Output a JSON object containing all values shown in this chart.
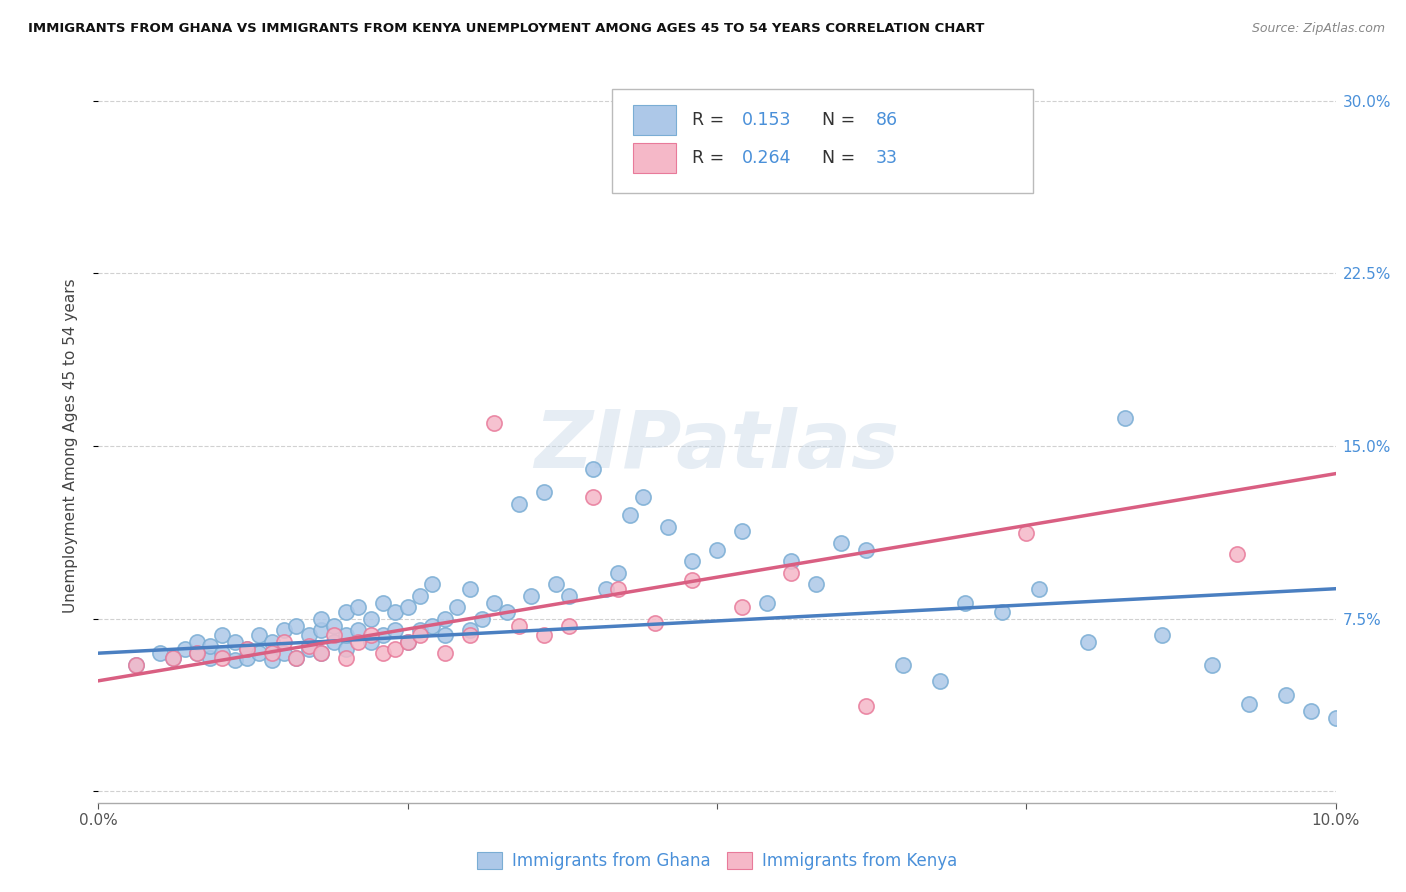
{
  "title": "IMMIGRANTS FROM GHANA VS IMMIGRANTS FROM KENYA UNEMPLOYMENT AMONG AGES 45 TO 54 YEARS CORRELATION CHART",
  "source": "Source: ZipAtlas.com",
  "ylabel": "Unemployment Among Ages 45 to 54 years",
  "yticks": [
    0.0,
    0.075,
    0.15,
    0.225,
    0.3
  ],
  "ytick_labels": [
    "",
    "7.5%",
    "15.0%",
    "22.5%",
    "30.0%"
  ],
  "xlim": [
    0.0,
    0.1
  ],
  "ylim": [
    -0.005,
    0.305
  ],
  "legend_ghana_R": "0.153",
  "legend_ghana_N": "86",
  "legend_kenya_R": "0.264",
  "legend_kenya_N": "33",
  "ghana_color": "#adc8e8",
  "ghana_edge_color": "#7aadd4",
  "kenya_color": "#f5b8c8",
  "kenya_edge_color": "#e87a9a",
  "ghana_line_color": "#4a7fc1",
  "kenya_line_color": "#d95f82",
  "watermark": "ZIPatlas",
  "ghana_scatter_x": [
    0.003,
    0.005,
    0.006,
    0.007,
    0.008,
    0.008,
    0.009,
    0.009,
    0.01,
    0.01,
    0.011,
    0.011,
    0.012,
    0.012,
    0.013,
    0.013,
    0.014,
    0.014,
    0.015,
    0.015,
    0.016,
    0.016,
    0.017,
    0.017,
    0.018,
    0.018,
    0.018,
    0.019,
    0.019,
    0.02,
    0.02,
    0.02,
    0.021,
    0.021,
    0.022,
    0.022,
    0.023,
    0.023,
    0.024,
    0.024,
    0.025,
    0.025,
    0.026,
    0.026,
    0.027,
    0.027,
    0.028,
    0.028,
    0.029,
    0.03,
    0.03,
    0.031,
    0.032,
    0.033,
    0.034,
    0.035,
    0.036,
    0.037,
    0.038,
    0.04,
    0.041,
    0.042,
    0.043,
    0.044,
    0.046,
    0.048,
    0.05,
    0.052,
    0.054,
    0.056,
    0.058,
    0.06,
    0.062,
    0.065,
    0.068,
    0.07,
    0.073,
    0.076,
    0.08,
    0.083,
    0.086,
    0.09,
    0.093,
    0.096,
    0.098,
    0.1
  ],
  "ghana_scatter_y": [
    0.055,
    0.06,
    0.058,
    0.062,
    0.06,
    0.065,
    0.058,
    0.063,
    0.06,
    0.068,
    0.057,
    0.065,
    0.058,
    0.062,
    0.06,
    0.068,
    0.057,
    0.065,
    0.06,
    0.07,
    0.058,
    0.072,
    0.062,
    0.068,
    0.06,
    0.07,
    0.075,
    0.065,
    0.072,
    0.062,
    0.068,
    0.078,
    0.07,
    0.08,
    0.065,
    0.075,
    0.068,
    0.082,
    0.07,
    0.078,
    0.065,
    0.08,
    0.07,
    0.085,
    0.072,
    0.09,
    0.068,
    0.075,
    0.08,
    0.07,
    0.088,
    0.075,
    0.082,
    0.078,
    0.125,
    0.085,
    0.13,
    0.09,
    0.085,
    0.14,
    0.088,
    0.095,
    0.12,
    0.128,
    0.115,
    0.1,
    0.105,
    0.113,
    0.082,
    0.1,
    0.09,
    0.108,
    0.105,
    0.055,
    0.048,
    0.082,
    0.078,
    0.088,
    0.065,
    0.162,
    0.068,
    0.055,
    0.038,
    0.042,
    0.035,
    0.032
  ],
  "kenya_scatter_x": [
    0.003,
    0.006,
    0.008,
    0.01,
    0.012,
    0.014,
    0.015,
    0.016,
    0.017,
    0.018,
    0.019,
    0.02,
    0.021,
    0.022,
    0.023,
    0.024,
    0.025,
    0.026,
    0.028,
    0.03,
    0.032,
    0.034,
    0.036,
    0.038,
    0.04,
    0.042,
    0.045,
    0.048,
    0.052,
    0.056,
    0.062,
    0.075,
    0.092
  ],
  "kenya_scatter_y": [
    0.055,
    0.058,
    0.06,
    0.058,
    0.062,
    0.06,
    0.065,
    0.058,
    0.063,
    0.06,
    0.068,
    0.058,
    0.065,
    0.068,
    0.06,
    0.062,
    0.065,
    0.068,
    0.06,
    0.068,
    0.16,
    0.072,
    0.068,
    0.072,
    0.128,
    0.088,
    0.073,
    0.092,
    0.08,
    0.095,
    0.037,
    0.112,
    0.103
  ],
  "ghana_line_x": [
    0.0,
    0.1
  ],
  "ghana_line_y": [
    0.06,
    0.088
  ],
  "kenya_line_x": [
    0.0,
    0.1
  ],
  "kenya_line_y": [
    0.048,
    0.138
  ]
}
